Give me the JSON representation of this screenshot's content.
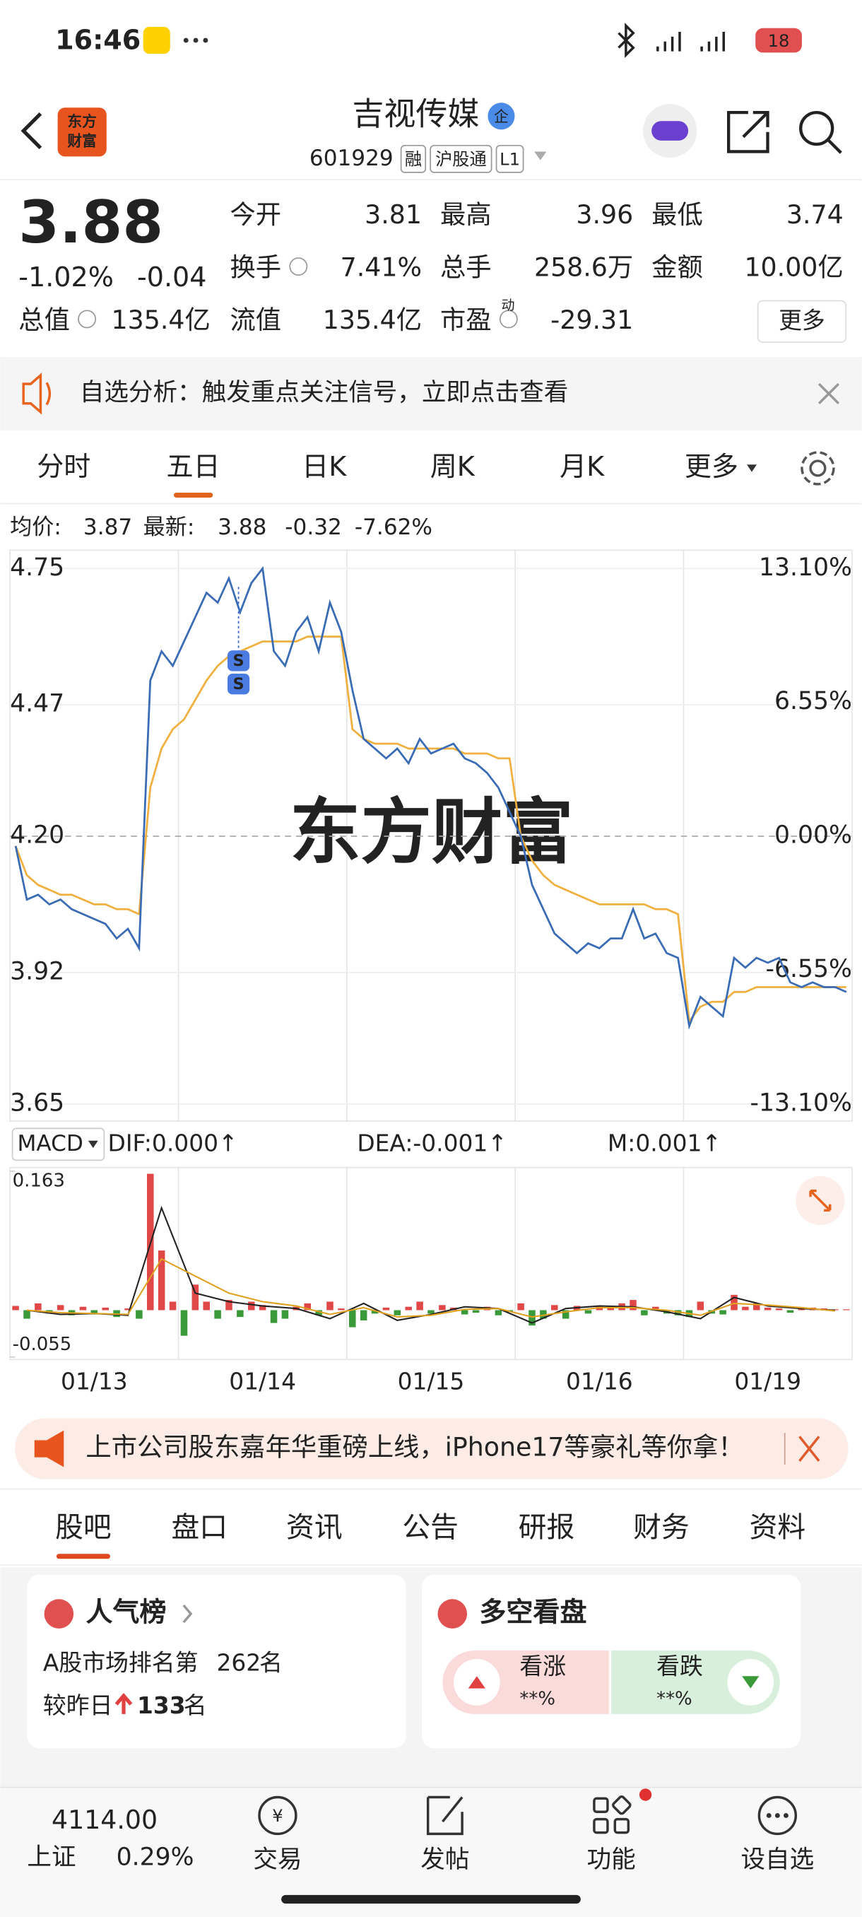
{
  "status": {
    "time": "16:46",
    "battery": "18"
  },
  "header": {
    "title": "吉视传媒",
    "badge": "企",
    "code": "601929",
    "tags": [
      "融",
      "沪股通",
      "L1"
    ],
    "logo": [
      "东方",
      "财富"
    ]
  },
  "quote": {
    "price": "3.88",
    "change_pct": "-1.02%",
    "change": "-0.04",
    "fields": [
      {
        "label": "今开",
        "value": "3.81"
      },
      {
        "label": "最高",
        "value": "3.96"
      },
      {
        "label": "最低",
        "value": "3.74"
      },
      {
        "label": "换手",
        "value": "7.41%"
      },
      {
        "label": "总手",
        "value": "258.6万"
      },
      {
        "label": "金额",
        "value": "10.00亿"
      },
      {
        "label": "总值",
        "value": "135.4亿"
      },
      {
        "label": "流值",
        "value": "135.4亿"
      },
      {
        "label": "市盈",
        "value": "-29.31"
      }
    ],
    "pe_sup": "动",
    "more": "更多"
  },
  "notice": "自选分析：触发重点关注信号，立即点击查看",
  "period_tabs": [
    "分时",
    "五日",
    "日K",
    "周K",
    "月K",
    "更多"
  ],
  "chart_data": [
    {
      "type": "line",
      "legend": {
        "avg_label": "均价:",
        "avg": "3.87",
        "latest_label": "最新:",
        "latest": "3.88",
        "change": "-0.32",
        "change_pct": "-7.62%"
      },
      "watermark": "东方财富",
      "markers": [
        "S",
        "S"
      ],
      "ylim": [
        3.65,
        4.75
      ],
      "yticks": [
        4.75,
        4.47,
        {
          "value": 4.2,
          "label": "4.20"
        },
        3.92,
        3.65
      ],
      "y2lim": [
        -13.1,
        13.1
      ],
      "y2ticks": [
        {
          "value": 13.1,
          "label": "13.10%"
        },
        {
          "value": 6.55,
          "label": "6.55%"
        },
        {
          "value": 0,
          "label": "0.00%"
        },
        {
          "value": -6.55,
          "label": "-6.55%"
        },
        {
          "value": -13.1,
          "label": "-13.10%"
        }
      ],
      "days": [
        "01/13",
        "01/14",
        "01/15",
        "01/16",
        "01/19"
      ],
      "series": [
        {
          "name": "最新",
          "color": "#3a6bb5",
          "values": [
            4.18,
            4.07,
            4.08,
            4.06,
            4.07,
            4.05,
            4.04,
            4.03,
            4.02,
            3.99,
            4.01,
            3.97,
            4.52,
            4.58,
            4.55,
            4.6,
            4.65,
            4.7,
            4.68,
            4.73,
            4.66,
            4.72,
            4.75,
            4.58,
            4.55,
            4.62,
            4.65,
            4.58,
            4.68,
            4.62,
            4.5,
            4.4,
            4.38,
            4.36,
            4.38,
            4.35,
            4.4,
            4.37,
            4.38,
            4.39,
            4.36,
            4.35,
            4.33,
            4.3,
            4.25,
            4.2,
            4.1,
            4.05,
            4.0,
            3.98,
            3.96,
            3.98,
            3.97,
            3.99,
            3.99,
            4.05,
            3.99,
            4.0,
            3.96,
            3.95,
            3.81,
            3.87,
            3.85,
            3.83,
            3.95,
            3.93,
            3.95,
            3.94,
            3.95,
            3.9,
            3.89,
            3.9,
            3.89,
            3.89,
            3.88
          ]
        },
        {
          "name": "均价",
          "color": "#f0b040",
          "values": [
            4.18,
            4.12,
            4.1,
            4.09,
            4.08,
            4.08,
            4.07,
            4.06,
            4.06,
            4.05,
            4.05,
            4.04,
            4.3,
            4.38,
            4.42,
            4.44,
            4.48,
            4.52,
            4.55,
            4.57,
            4.58,
            4.59,
            4.6,
            4.6,
            4.6,
            4.6,
            4.61,
            4.61,
            4.61,
            4.61,
            4.42,
            4.4,
            4.39,
            4.39,
            4.39,
            4.38,
            4.38,
            4.38,
            4.38,
            4.38,
            4.37,
            4.37,
            4.37,
            4.36,
            4.36,
            4.2,
            4.15,
            4.12,
            4.1,
            4.09,
            4.08,
            4.07,
            4.06,
            4.06,
            4.06,
            4.06,
            4.06,
            4.05,
            4.05,
            4.04,
            3.82,
            3.85,
            3.86,
            3.86,
            3.88,
            3.88,
            3.89,
            3.89,
            3.89,
            3.89,
            3.89,
            3.89,
            3.89,
            3.89,
            3.89
          ]
        }
      ]
    },
    {
      "type": "bar",
      "indicator": "MACD",
      "dif_label": "DIF:0.000↑",
      "dea_label": "DEA:-0.001↑",
      "m_label": "M:0.001↑",
      "ylim": [
        -0.055,
        0.163
      ],
      "yticks": [
        0.163,
        -0.055
      ],
      "positive_color": "#e04848",
      "negative_color": "#3a9a3a",
      "values": [
        0.005,
        -0.01,
        0.008,
        -0.004,
        0.006,
        -0.006,
        0.004,
        -0.005,
        0.003,
        -0.008,
        0.002,
        -0.01,
        0.16,
        0.07,
        0.01,
        -0.03,
        0.03,
        0.01,
        -0.01,
        0.012,
        -0.008,
        0.01,
        0.006,
        -0.015,
        -0.01,
        0.004,
        0.008,
        -0.006,
        0.01,
        0.002,
        -0.02,
        -0.012,
        -0.004,
        0.003,
        -0.006,
        0.004,
        0.01,
        -0.004,
        0.006,
        0.003,
        -0.005,
        -0.003,
        0.004,
        -0.006,
        -0.002,
        0.008,
        -0.018,
        -0.01,
        0.006,
        -0.01,
        0.005,
        -0.004,
        0.004,
        0.003,
        0.008,
        0.012,
        -0.006,
        0.004,
        -0.004,
        -0.006,
        -0.008,
        0.01,
        -0.004,
        -0.005,
        0.018,
        0.004,
        0.008,
        0.003,
        0.002,
        -0.003,
        0.002,
        0.003,
        0.002,
        0.001,
        0.001
      ],
      "lines": [
        {
          "name": "DIF",
          "color": "#222222",
          "values": [
            0.0,
            -0.005,
            -0.004,
            -0.006,
            0.12,
            0.02,
            0.01,
            0.005,
            0.002,
            -0.01,
            0.008,
            -0.012,
            -0.005,
            0.004,
            0.002,
            -0.015,
            0.002,
            0.005,
            0.004,
            -0.002,
            -0.01,
            0.015,
            0.005,
            0.002,
            0.0
          ]
        },
        {
          "name": "DEA",
          "color": "#e0a020",
          "values": [
            0.0,
            -0.003,
            -0.004,
            -0.005,
            0.06,
            0.04,
            0.02,
            0.01,
            0.005,
            -0.005,
            0.003,
            -0.008,
            -0.006,
            0.001,
            0.002,
            -0.008,
            -0.002,
            0.003,
            0.003,
            0.0,
            -0.006,
            0.008,
            0.006,
            0.003,
            -0.001
          ]
        }
      ]
    }
  ],
  "banner": "上市公司股东嘉年华重磅上线，iPhone17等豪礼等你拿！",
  "content_tabs": [
    "股吧",
    "盘口",
    "资讯",
    "公告",
    "研报",
    "财务",
    "资料"
  ],
  "popularity": {
    "title": "人气榜",
    "rank_prefix": "A股市场排名第",
    "rank": "262",
    "rank_suffix": "名",
    "delta_prefix": "较昨日",
    "delta": "133",
    "delta_suffix": "名"
  },
  "sentiment": {
    "title": "多空看盘",
    "bull": "看涨",
    "bull_value": "**%",
    "bear": "看跌",
    "bear_value": "**%"
  },
  "bottom_nav": {
    "index_value": "4114.00",
    "index_name": "上证",
    "index_change": "0.29%",
    "items": [
      "交易",
      "发帖",
      "功能",
      "设自选"
    ]
  }
}
